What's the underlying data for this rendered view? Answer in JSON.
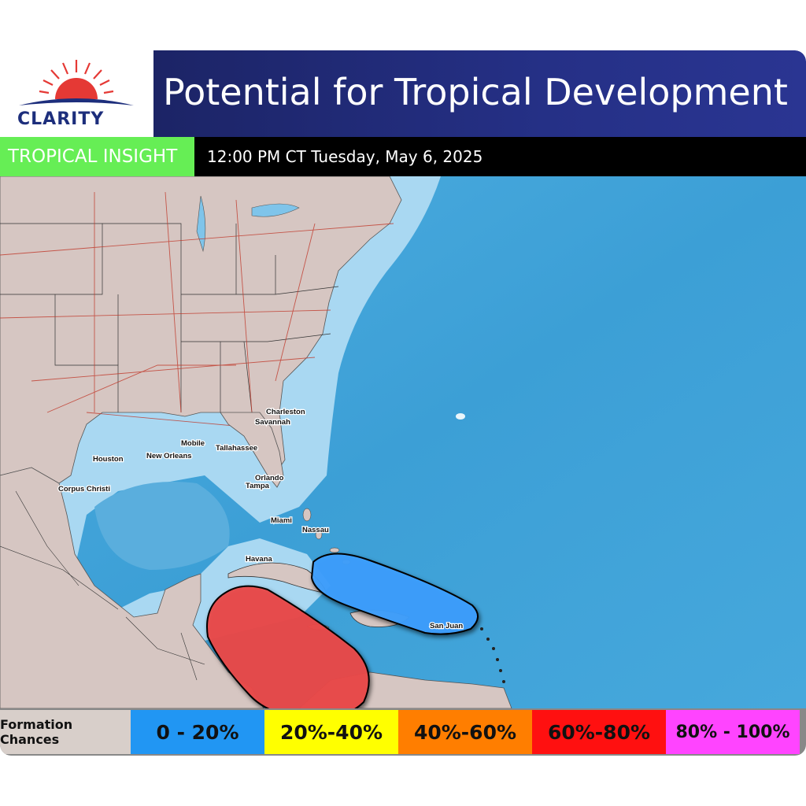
{
  "logo": {
    "name": "CLARITY"
  },
  "header": {
    "title": "Potential for Tropical Development"
  },
  "badge": {
    "label": "TROPICAL INSIGHT"
  },
  "timestamp": "12:00 PM CT Tuesday, May 6, 2025",
  "map": {
    "cities": [
      "Charleston",
      "Savannah",
      "Mobile",
      "Tallahassee",
      "Houston",
      "New Orleans",
      "Orlando",
      "Tampa",
      "Corpus Christi",
      "Miami",
      "Nassau",
      "Havana",
      "San Juan"
    ],
    "areas": [
      {
        "chance": "0 - 20%",
        "color": "#3ea0ff"
      },
      {
        "chance": "60%-80%",
        "color": "#ea4848"
      }
    ]
  },
  "legend": {
    "label": "Formation Chances",
    "items": [
      "0 - 20%",
      "20%-40%",
      "40%-60%",
      "60%-80%",
      "80% - 100%"
    ],
    "colors": [
      "#2196f3",
      "#ffff00",
      "#ff7e00",
      "#ff1010",
      "#ff44ff"
    ]
  }
}
